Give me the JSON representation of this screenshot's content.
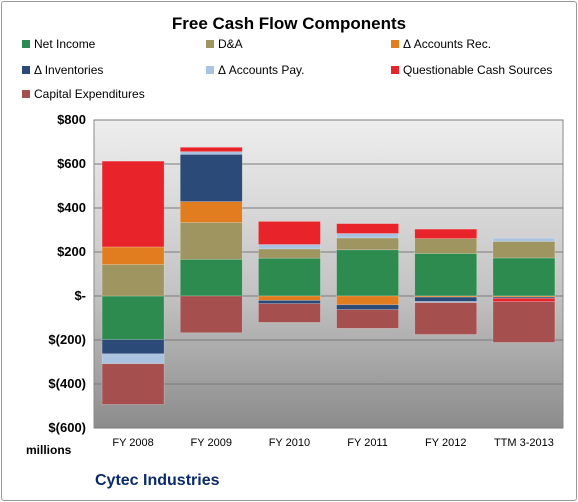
{
  "chart_data": {
    "type": "bar",
    "stacked": true,
    "title": "Free Cash Flow Components",
    "categories": [
      "FY 2008",
      "FY 2009",
      "FY 2010",
      "FY 2011",
      "FY 2012",
      "TTM 3-2013"
    ],
    "ylim": [
      -600,
      800
    ],
    "yticks": [
      800,
      600,
      400,
      200,
      0,
      -200,
      -400,
      -600
    ],
    "ytick_labels": [
      "$800",
      "$600",
      "$400",
      "$200",
      "$-",
      "$(200)",
      "$(400)",
      "$(600)"
    ],
    "unit_label": "millions",
    "grid": true,
    "legend_position": "top",
    "series": [
      {
        "name": "Net Income",
        "color": "#2e8b4f",
        "values": [
          -198,
          167,
          172,
          210,
          193,
          173
        ]
      },
      {
        "name": "D&A",
        "color": "#9e9560",
        "values": [
          143,
          167,
          42,
          54,
          68,
          75
        ]
      },
      {
        "name": "Δ Accounts Rec.",
        "color": "#e27d1f",
        "values": [
          80,
          95,
          -20,
          -40,
          -5,
          -5
        ]
      },
      {
        "name": "Δ Inventories",
        "color": "#2b4a78",
        "values": [
          -65,
          215,
          -15,
          -22,
          -20,
          -6
        ]
      },
      {
        "name": "Δ Accounts Pay.",
        "color": "#a9c3e0",
        "values": [
          -45,
          12,
          20,
          20,
          -5,
          15
        ]
      },
      {
        "name": "Questionable Cash Sources",
        "color": "#e8232a",
        "values": [
          390,
          20,
          105,
          45,
          43,
          -15
        ]
      },
      {
        "name": "Capital Expenditures",
        "color": "#a5504f",
        "values": [
          -185,
          -167,
          -85,
          -85,
          -145,
          -185
        ]
      }
    ]
  },
  "footer": {
    "company": "Cytec Industries"
  }
}
